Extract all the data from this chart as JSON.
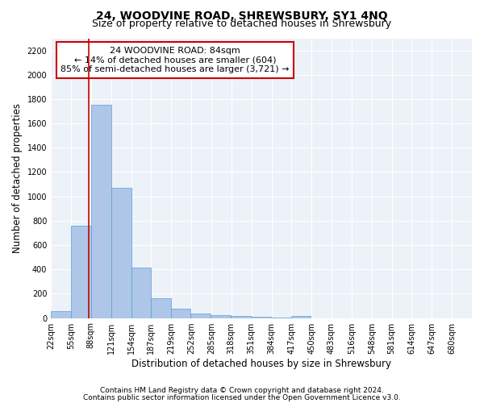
{
  "title": "24, WOODVINE ROAD, SHREWSBURY, SY1 4NQ",
  "subtitle": "Size of property relative to detached houses in Shrewsbury",
  "xlabel": "Distribution of detached houses by size in Shrewsbury",
  "ylabel": "Number of detached properties",
  "footnote1": "Contains HM Land Registry data © Crown copyright and database right 2024.",
  "footnote2": "Contains public sector information licensed under the Open Government Licence v3.0.",
  "annotation_line1": "24 WOODVINE ROAD: 84sqm",
  "annotation_line2": "← 14% of detached houses are smaller (604)",
  "annotation_line3": "85% of semi-detached houses are larger (3,721) →",
  "bin_labels": [
    "22sqm",
    "55sqm",
    "88sqm",
    "121sqm",
    "154sqm",
    "187sqm",
    "219sqm",
    "252sqm",
    "285sqm",
    "318sqm",
    "351sqm",
    "384sqm",
    "417sqm",
    "450sqm",
    "483sqm",
    "516sqm",
    "548sqm",
    "581sqm",
    "614sqm",
    "647sqm",
    "680sqm"
  ],
  "bin_starts": [
    22,
    55,
    88,
    121,
    154,
    187,
    219,
    252,
    285,
    318,
    351,
    384,
    417,
    450,
    483,
    516,
    548,
    581,
    614,
    647,
    680
  ],
  "bin_width": 33,
  "bar_values": [
    55,
    760,
    1750,
    1070,
    415,
    160,
    80,
    35,
    25,
    15,
    10,
    5,
    15,
    0,
    0,
    0,
    0,
    0,
    0,
    0,
    0
  ],
  "bar_color": "#aec6e8",
  "bar_edge_color": "#5a9fd4",
  "property_line_x": 84,
  "property_line_color": "#cc0000",
  "ylim": [
    0,
    2300
  ],
  "yticks": [
    0,
    200,
    400,
    600,
    800,
    1000,
    1200,
    1400,
    1600,
    1800,
    2000,
    2200
  ],
  "background_color": "#edf2f9",
  "grid_color": "#ffffff",
  "annotation_box_facecolor": "#ffffff",
  "annotation_box_edgecolor": "#cc0000",
  "title_fontsize": 10,
  "subtitle_fontsize": 9,
  "axis_label_fontsize": 8.5,
  "tick_fontsize": 7,
  "annotation_fontsize": 8,
  "footnote_fontsize": 6.5
}
